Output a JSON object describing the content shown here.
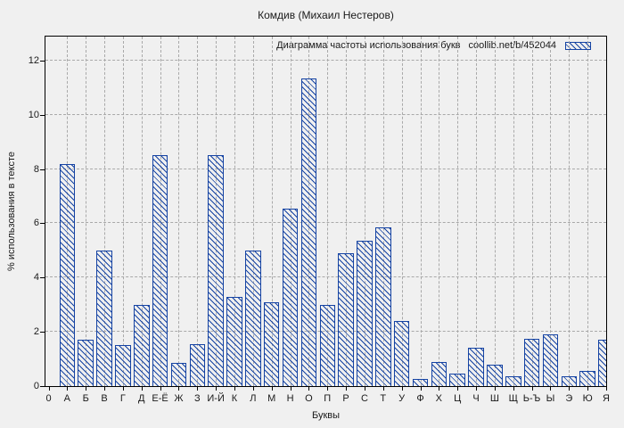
{
  "window": {
    "title": "Комдив (Михаил Нестеров)"
  },
  "legend": {
    "label": "Диаграмма частоты использования букв",
    "source": "coollib.net/b/452044",
    "swatch": "blue-diagonal-hatch"
  },
  "axes": {
    "xlabel": "Буквы",
    "ylabel": "% использования в тексте",
    "origin_tick_label": "0",
    "yticks": [
      0,
      2,
      4,
      6,
      8,
      10,
      12
    ]
  },
  "colors": {
    "bar": "#1543a3",
    "background": "#f0f0f0",
    "grid": "#a9a9a9",
    "axis": "#000000",
    "text": "#1a1a1a"
  },
  "chart_data": {
    "type": "bar",
    "title": "Комдив (Михаил Нестеров)",
    "xlabel": "Буквы",
    "ylabel": "% использования в тексте",
    "legend_entry": "Диаграмма частоты использования букв  coollib.net/b/452044",
    "legend_position": "top-right-inside",
    "grid": true,
    "bar_style": "diagonal-hatch-outline",
    "ylim": [
      0,
      13
    ],
    "yticks": [
      0,
      2,
      4,
      6,
      8,
      10,
      12
    ],
    "x_origin_label": "0",
    "categories": [
      "А",
      "Б",
      "В",
      "Г",
      "Д",
      "Е-Ё",
      "Ж",
      "З",
      "И-Й",
      "К",
      "Л",
      "М",
      "Н",
      "О",
      "П",
      "Р",
      "С",
      "Т",
      "У",
      "Ф",
      "Х",
      "Ц",
      "Ч",
      "Ш",
      "Щ",
      "Ь-Ъ",
      "Ы",
      "Э",
      "Ю",
      "Я"
    ],
    "values": [
      8.2,
      1.7,
      5.0,
      1.5,
      3.0,
      8.5,
      0.85,
      1.55,
      8.5,
      3.3,
      5.0,
      3.1,
      6.55,
      11.35,
      3.0,
      4.9,
      5.35,
      5.85,
      2.4,
      0.25,
      0.9,
      0.45,
      1.4,
      0.8,
      0.37,
      1.75,
      1.9,
      0.35,
      0.55,
      1.7
    ]
  }
}
